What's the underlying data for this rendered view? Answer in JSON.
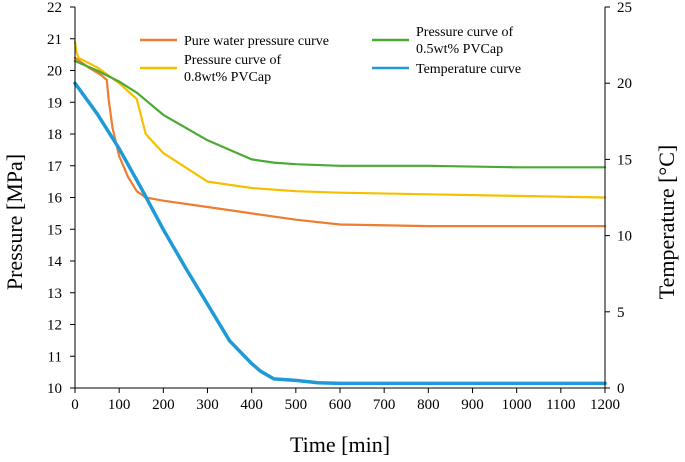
{
  "chart_data": {
    "type": "line",
    "xlabel": "Time [min]",
    "ylabel_left": "Pressure  [MPa]",
    "ylabel_right": "Temperature  [°C]",
    "xlim": [
      0,
      1200
    ],
    "ylim_left": [
      10,
      22
    ],
    "ylim_right": [
      0,
      25
    ],
    "x_ticks": [
      "0",
      "100",
      "200",
      "300",
      "400",
      "500",
      "600",
      "700",
      "800",
      "900",
      "1000",
      "1100",
      "1200"
    ],
    "y_left_ticks": [
      "10",
      "11",
      "12",
      "13",
      "14",
      "15",
      "16",
      "17",
      "18",
      "19",
      "20",
      "21",
      "22"
    ],
    "y_right_ticks": [
      "0",
      "5",
      "10",
      "15",
      "20",
      "25"
    ],
    "grid": false,
    "series": [
      {
        "name": "Pure water pressure curve",
        "axis": "left",
        "color": "#ED7D31",
        "x": [
          0,
          30,
          60,
          72,
          76,
          85,
          100,
          120,
          140,
          160,
          200,
          300,
          400,
          500,
          600,
          800,
          1000,
          1200
        ],
        "y": [
          20.4,
          20.1,
          19.85,
          19.7,
          19.1,
          18.2,
          17.3,
          16.65,
          16.2,
          16.0,
          15.9,
          15.7,
          15.5,
          15.3,
          15.15,
          15.1,
          15.1,
          15.1
        ]
      },
      {
        "name": "Pressure curve of 0.8wt% PVCap",
        "legend_lines": [
          "Pressure curve of",
          "0.8wt% PVCap"
        ],
        "axis": "left",
        "color": "#F5C000",
        "x": [
          0,
          3,
          8,
          50,
          100,
          140,
          160,
          200,
          300,
          400,
          450,
          500,
          600,
          800,
          1000,
          1200
        ],
        "y": [
          20.9,
          20.6,
          20.4,
          20.1,
          19.6,
          19.1,
          18.0,
          17.4,
          16.5,
          16.3,
          16.25,
          16.2,
          16.15,
          16.1,
          16.05,
          16.0
        ]
      },
      {
        "name": "Pressure curve of 0.5wt% PVCap",
        "legend_lines": [
          "Pressure curve of",
          "0.5wt% PVCap"
        ],
        "axis": "left",
        "color": "#4BAA33",
        "x": [
          0,
          50,
          100,
          140,
          200,
          300,
          400,
          450,
          500,
          600,
          800,
          1000,
          1200
        ],
        "y": [
          20.3,
          20.0,
          19.65,
          19.3,
          18.6,
          17.8,
          17.2,
          17.1,
          17.05,
          17.0,
          17.0,
          16.95,
          16.95
        ]
      },
      {
        "name": "Temperature curve",
        "axis": "right",
        "color": "#1E9BD7",
        "x": [
          0,
          50,
          100,
          150,
          200,
          250,
          300,
          350,
          400,
          420,
          450,
          500,
          550,
          600,
          700,
          800,
          900,
          1000,
          1100,
          1200
        ],
        "y": [
          20.0,
          18.0,
          15.7,
          13.1,
          10.4,
          7.9,
          5.5,
          3.1,
          1.6,
          1.1,
          0.6,
          0.5,
          0.35,
          0.3,
          0.3,
          0.3,
          0.3,
          0.3,
          0.3,
          0.3
        ]
      }
    ],
    "legend": [
      {
        "label": "Pure water pressure curve",
        "color": "#ED7D31"
      },
      {
        "label_lines": [
          "Pressure curve of",
          "0.8wt% PVCap"
        ],
        "color": "#F5C000"
      },
      {
        "label_lines": [
          "Pressure curve of",
          "0.5wt% PVCap"
        ],
        "color": "#4BAA33"
      },
      {
        "label": "Temperature curve",
        "color": "#1E9BD7"
      }
    ]
  }
}
